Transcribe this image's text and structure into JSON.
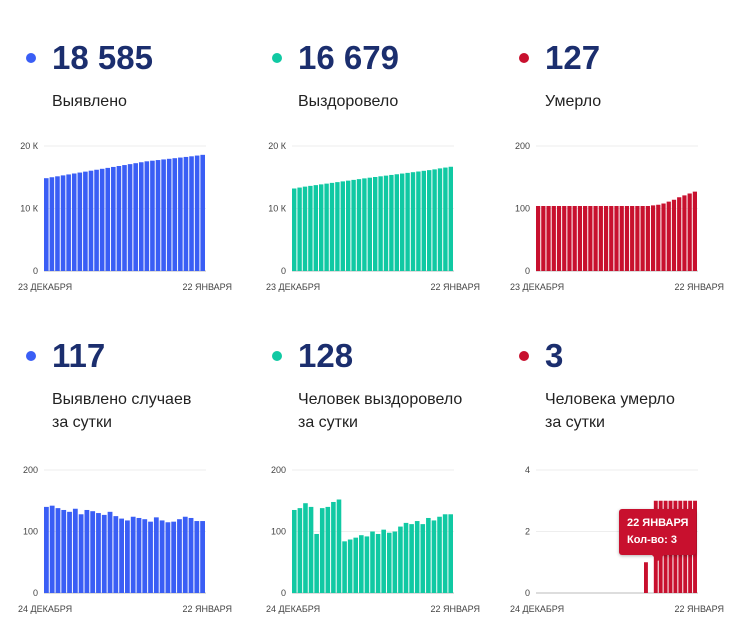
{
  "colors": {
    "blue": "#3a5ef5",
    "green": "#10c9a3",
    "red": "#c8102e",
    "number": "#1b2e6e"
  },
  "panels": [
    {
      "key": "detected",
      "color": "#3a5ef5",
      "number": "18 585",
      "label_lines": [
        "Выявлено"
      ]
    },
    {
      "key": "recovered",
      "color": "#10c9a3",
      "number": "16 679",
      "label_lines": [
        "Выздоровело"
      ]
    },
    {
      "key": "died",
      "color": "#c8102e",
      "number": "127",
      "label_lines": [
        "Умерло"
      ]
    },
    {
      "key": "detected-daily",
      "color": "#3a5ef5",
      "number": "117",
      "label_lines": [
        "Выявлено случаев",
        "за сутки"
      ]
    },
    {
      "key": "recovered-daily",
      "color": "#10c9a3",
      "number": "128",
      "label_lines": [
        "Человек выздоровело",
        "за сутки"
      ]
    },
    {
      "key": "died-daily",
      "color": "#c8102e",
      "number": "3",
      "label_lines": [
        "Человека умерло",
        "за сутки"
      ]
    }
  ],
  "tooltip": {
    "date": "22 ЯНВАРЯ",
    "value_text": "Кол-во: 3"
  },
  "chart_data": [
    {
      "type": "bar",
      "title": "Выявлено",
      "series": [
        {
          "values": [
            14850,
            15000,
            15150,
            15300,
            15450,
            15600,
            15750,
            15900,
            16050,
            16200,
            16350,
            16500,
            16650,
            16800,
            16950,
            17100,
            17250,
            17400,
            17550,
            17650,
            17750,
            17850,
            17950,
            18050,
            18150,
            18250,
            18350,
            18470,
            18585
          ]
        }
      ],
      "ylim": [
        0,
        20000
      ],
      "yticks": [
        0,
        10000,
        20000
      ],
      "ytick_labels": [
        "0",
        "10 К",
        "20 К"
      ],
      "x_labels": [
        "23 ДЕКАБРЯ",
        "22 ЯНВАРЯ"
      ]
    },
    {
      "type": "bar",
      "title": "Выздоровело",
      "series": [
        {
          "values": [
            13200,
            13350,
            13500,
            13620,
            13740,
            13860,
            13980,
            14100,
            14220,
            14340,
            14460,
            14580,
            14700,
            14820,
            14930,
            15040,
            15150,
            15260,
            15370,
            15480,
            15590,
            15700,
            15810,
            15920,
            16030,
            16140,
            16260,
            16420,
            16550,
            16679
          ]
        }
      ],
      "ylim": [
        0,
        20000
      ],
      "yticks": [
        0,
        10000,
        20000
      ],
      "ytick_labels": [
        "0",
        "10 К",
        "20 К"
      ],
      "x_labels": [
        "23 ДЕКАБРЯ",
        "22 ЯНВАРЯ"
      ]
    },
    {
      "type": "bar",
      "title": "Умерло",
      "series": [
        {
          "values": [
            104,
            104,
            104,
            104,
            104,
            104,
            104,
            104,
            104,
            104,
            104,
            104,
            104,
            104,
            104,
            104,
            104,
            104,
            104,
            104,
            104,
            104,
            105,
            106,
            108,
            111,
            114,
            118,
            121,
            124,
            127
          ]
        }
      ],
      "ylim": [
        0,
        200
      ],
      "yticks": [
        0,
        100,
        200
      ],
      "ytick_labels": [
        "0",
        "100",
        "200"
      ],
      "x_labels": [
        "23 ДЕКАБРЯ",
        "22 ЯНВАРЯ"
      ]
    },
    {
      "type": "bar",
      "title": "Выявлено случаев за сутки",
      "series": [
        {
          "values": [
            140,
            142,
            138,
            135,
            132,
            137,
            128,
            135,
            133,
            130,
            127,
            132,
            125,
            121,
            118,
            124,
            122,
            120,
            116,
            123,
            118,
            115,
            116,
            120,
            124,
            122,
            117,
            117
          ]
        }
      ],
      "ylim": [
        0,
        200
      ],
      "yticks": [
        0,
        100,
        200
      ],
      "ytick_labels": [
        "0",
        "100",
        "200"
      ],
      "x_labels": [
        "24 ДЕКАБРЯ",
        "22 ЯНВАРЯ"
      ]
    },
    {
      "type": "bar",
      "title": "Человек выздоровело за сутки",
      "series": [
        {
          "values": [
            135,
            138,
            146,
            140,
            96,
            138,
            140,
            148,
            152,
            84,
            87,
            90,
            94,
            92,
            100,
            96,
            103,
            98,
            100,
            108,
            114,
            112,
            117,
            112,
            122,
            118,
            124,
            128,
            128
          ]
        }
      ],
      "ylim": [
        0,
        200
      ],
      "yticks": [
        0,
        100,
        200
      ],
      "ytick_labels": [
        "0",
        "100",
        "200"
      ],
      "x_labels": [
        "24 ДЕКАБРЯ",
        "22 ЯНВАРЯ"
      ]
    },
    {
      "type": "bar",
      "title": "Человека умерло за сутки",
      "series": [
        {
          "values": [
            0,
            0,
            0,
            0,
            0,
            0,
            0,
            0,
            0,
            0,
            0,
            0,
            0,
            0,
            0,
            0,
            0,
            0,
            0,
            0,
            0,
            0,
            1,
            0,
            3,
            3,
            3,
            3,
            3,
            3,
            3,
            3,
            3
          ]
        }
      ],
      "ylim": [
        0,
        4
      ],
      "yticks": [
        0,
        2,
        4
      ],
      "ytick_labels": [
        "0",
        "2",
        "4"
      ],
      "x_labels": [
        "24 ДЕКАБРЯ",
        "22 ЯНВАРЯ"
      ]
    }
  ]
}
